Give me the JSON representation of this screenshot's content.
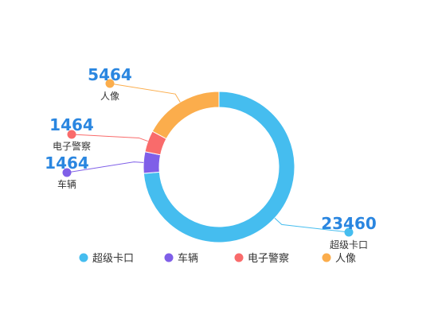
{
  "chart_data": {
    "type": "pie",
    "variant": "donut",
    "categories": [
      "超级卡口",
      "车辆",
      "电子警察",
      "人像"
    ],
    "values": [
      23460,
      1464,
      1464,
      5464
    ],
    "colors": [
      "#45bdef",
      "#7f5fe8",
      "#f96b6b",
      "#fbad4c"
    ],
    "legend_position": "bottom"
  },
  "value_color": "#2a86e0"
}
